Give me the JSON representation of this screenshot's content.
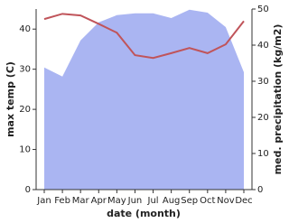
{
  "chart_data": {
    "type": "line_area",
    "x_label": "date (month)",
    "y_label": "max temp (C)",
    "y2_label": "med. precipitation (kg/m2)",
    "categories": [
      "Jan",
      "Feb",
      "Mar",
      "Apr",
      "May",
      "Jun",
      "Jul",
      "Aug",
      "Sep",
      "Oct",
      "Nov",
      "Dec"
    ],
    "series": [
      {
        "name": "max temp",
        "color": "#c0545a",
        "values": [
          42.5,
          43.8,
          43.4,
          41.3,
          39.1,
          33.5,
          32.8,
          34.0,
          35.3,
          34.0,
          36.2,
          42.0
        ]
      },
      {
        "name": "med. precipitation",
        "color": "#aab5f2",
        "axis": "y2",
        "values": [
          33.8,
          31.3,
          41.3,
          46.3,
          48.3,
          48.8,
          48.8,
          47.5,
          49.8,
          49.0,
          45.0,
          32.5
        ]
      }
    ],
    "ylim": [
      0,
      45
    ],
    "yticks": [
      0,
      10,
      20,
      30,
      40
    ],
    "y2lim": [
      0,
      50
    ],
    "y2ticks": [
      0,
      10,
      20,
      30,
      40,
      50
    ]
  }
}
